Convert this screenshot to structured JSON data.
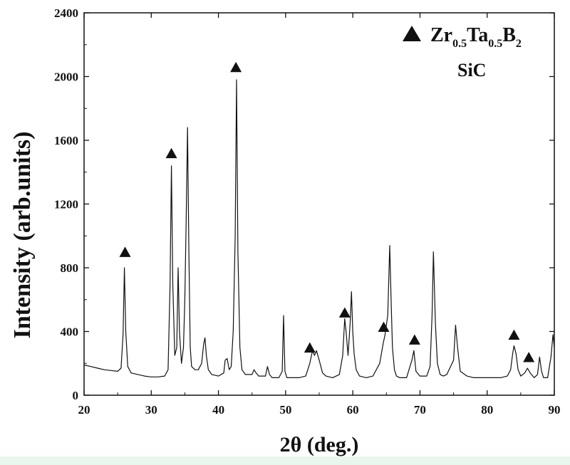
{
  "chart_data": {
    "type": "line",
    "xlabel": "2θ  (deg.)",
    "ylabel": "Intensity  (arb.units)",
    "xlim": [
      20,
      90
    ],
    "ylim": [
      0,
      2400
    ],
    "xticks": [
      20,
      30,
      40,
      50,
      60,
      70,
      80,
      90
    ],
    "yticks": [
      0,
      400,
      800,
      1200,
      1600,
      2000,
      2400
    ],
    "grid": false,
    "legend": {
      "placement": "top-right",
      "entries": [
        {
          "marker": "filled-triangle",
          "text": "Zr",
          "sub1": "0.5",
          "text2": "Ta",
          "sub2": "0.5",
          "text3": "B",
          "sub3": "2"
        },
        {
          "marker": "none",
          "text": "SiC"
        }
      ]
    },
    "series": [
      {
        "x": [
          20,
          21,
          22,
          23,
          24,
          25,
          25.5,
          25.8,
          26.0,
          26.2,
          26.5,
          27,
          28,
          29,
          30,
          31,
          32,
          32.5,
          32.8,
          33.0,
          33.2,
          33.5,
          33.8,
          34.0,
          34.2,
          34.5,
          34.8,
          35.0,
          35.2,
          35.4,
          35.6,
          35.8,
          36.0,
          36.5,
          37,
          37.5,
          37.8,
          38.0,
          38.2,
          38.5,
          39,
          40,
          40.8,
          41.0,
          41.3,
          41.6,
          41.9,
          42.2,
          42.5,
          42.7,
          42.9,
          43.2,
          43.5,
          44,
          45,
          45.3,
          45.6,
          46,
          47,
          47.3,
          47.6,
          48,
          49,
          49.5,
          49.7,
          49.9,
          50.2,
          51,
          52,
          53,
          53.6,
          54.0,
          54.3,
          54.6,
          55.0,
          55.5,
          56,
          57,
          58,
          58.5,
          58.8,
          59.0,
          59.3,
          59.6,
          59.8,
          60.0,
          60.2,
          60.5,
          61,
          62,
          63,
          64,
          64.5,
          64.8,
          65.2,
          65.5,
          65.7,
          65.9,
          66.2,
          66.5,
          67,
          68,
          68.8,
          69.1,
          69.4,
          70,
          71,
          71.5,
          71.8,
          72.0,
          72.3,
          72.6,
          73,
          73.5,
          74,
          75,
          75.3,
          75.6,
          76,
          77,
          78,
          79,
          80,
          81,
          82,
          83,
          83.5,
          83.8,
          84.0,
          84.3,
          84.6,
          85,
          85.6,
          86.0,
          86.4,
          87,
          87.5,
          87.8,
          88.1,
          88.4,
          89,
          89.5,
          89.8,
          90
        ],
        "y": [
          190,
          180,
          170,
          160,
          155,
          150,
          170,
          380,
          800,
          400,
          180,
          140,
          130,
          120,
          115,
          115,
          120,
          160,
          700,
          1440,
          700,
          250,
          300,
          800,
          400,
          200,
          300,
          600,
          1100,
          1680,
          900,
          300,
          180,
          160,
          160,
          200,
          320,
          360,
          250,
          160,
          130,
          120,
          140,
          220,
          230,
          160,
          180,
          400,
          1000,
          1980,
          900,
          300,
          160,
          130,
          130,
          160,
          140,
          120,
          120,
          180,
          130,
          110,
          110,
          150,
          500,
          150,
          110,
          110,
          110,
          120,
          200,
          280,
          250,
          280,
          220,
          140,
          120,
          110,
          130,
          250,
          480,
          400,
          250,
          450,
          650,
          400,
          260,
          160,
          120,
          110,
          120,
          200,
          320,
          380,
          500,
          940,
          600,
          300,
          160,
          120,
          110,
          110,
          220,
          280,
          150,
          120,
          120,
          180,
          500,
          900,
          450,
          200,
          130,
          120,
          130,
          220,
          440,
          300,
          150,
          120,
          110,
          110,
          110,
          110,
          110,
          120,
          160,
          260,
          310,
          260,
          160,
          120,
          140,
          170,
          140,
          110,
          130,
          240,
          150,
          110,
          110,
          240,
          380,
          300
        ]
      }
    ],
    "markers": {
      "symbol": "filled-triangle",
      "points": [
        {
          "x": 26.1,
          "y": 900
        },
        {
          "x": 33.0,
          "y": 1520
        },
        {
          "x": 42.6,
          "y": 2060
        },
        {
          "x": 53.6,
          "y": 300
        },
        {
          "x": 58.8,
          "y": 520
        },
        {
          "x": 64.6,
          "y": 430
        },
        {
          "x": 69.2,
          "y": 350
        },
        {
          "x": 84.0,
          "y": 380
        },
        {
          "x": 86.2,
          "y": 240
        }
      ]
    }
  }
}
